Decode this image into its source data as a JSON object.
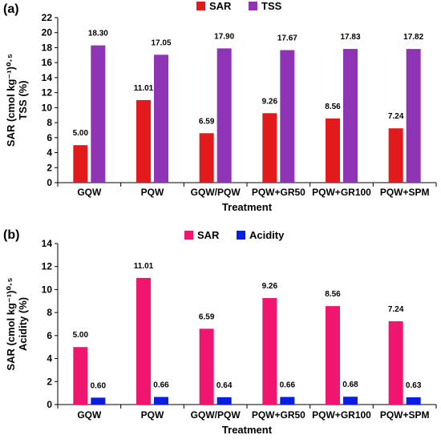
{
  "chart_data": [
    {
      "panel": "(a)",
      "type": "bar",
      "categories": [
        "GQW",
        "PQW",
        "GQW/PQW",
        "PQW+GR50",
        "PQW+GR100",
        "PQW+SPM"
      ],
      "series": [
        {
          "name": "SAR",
          "color": "#e31a1c",
          "values": [
            5.0,
            11.01,
            6.59,
            9.26,
            8.56,
            7.24
          ]
        },
        {
          "name": "TSS",
          "color": "#8e34b4",
          "values": [
            18.3,
            17.05,
            17.9,
            17.67,
            17.83,
            17.82
          ]
        }
      ],
      "data_labels": [
        [
          "5.00",
          "11.01",
          "6.59",
          "9.26",
          "8.56",
          "7.24"
        ],
        [
          "18.30",
          "17.05",
          "17.90",
          "17.67",
          "17.83",
          "17.82"
        ]
      ],
      "xlabel": "Treatment",
      "ylabel_line1": "SAR (cmol kg⁻¹)⁰·⁵",
      "ylabel_line2": "TSS (%)",
      "ylim": [
        0,
        22
      ],
      "yticks": [
        0,
        2,
        4,
        6,
        8,
        10,
        12,
        14,
        16,
        18,
        20,
        22
      ],
      "legend_position": "top-center",
      "grid": false
    },
    {
      "panel": "(b)",
      "type": "bar",
      "categories": [
        "GQW",
        "PQW",
        "GQW/PQW",
        "PQW+GR50",
        "PQW+GR100",
        "PQW+SPM"
      ],
      "series": [
        {
          "name": "SAR",
          "color": "#f0166f",
          "values": [
            5.0,
            11.01,
            6.59,
            9.26,
            8.56,
            7.24
          ]
        },
        {
          "name": "Acidity",
          "color": "#0a1ee0",
          "values": [
            0.6,
            0.66,
            0.64,
            0.66,
            0.68,
            0.63
          ]
        }
      ],
      "data_labels": [
        [
          "5.00",
          "11.01",
          "6.59",
          "9.26",
          "8.56",
          "7.24"
        ],
        [
          "0.60",
          "0.66",
          "0.64",
          "0.66",
          "0.68",
          "0.63"
        ]
      ],
      "xlabel": "Treatment",
      "ylabel_line1": "SAR (cmol kg⁻¹)⁰·⁵",
      "ylabel_line2": "Acidity (%)",
      "ylim": [
        0,
        14
      ],
      "yticks": [
        0,
        2,
        4,
        6,
        8,
        10,
        12,
        14
      ],
      "legend_position": "top-center",
      "grid": false
    }
  ]
}
